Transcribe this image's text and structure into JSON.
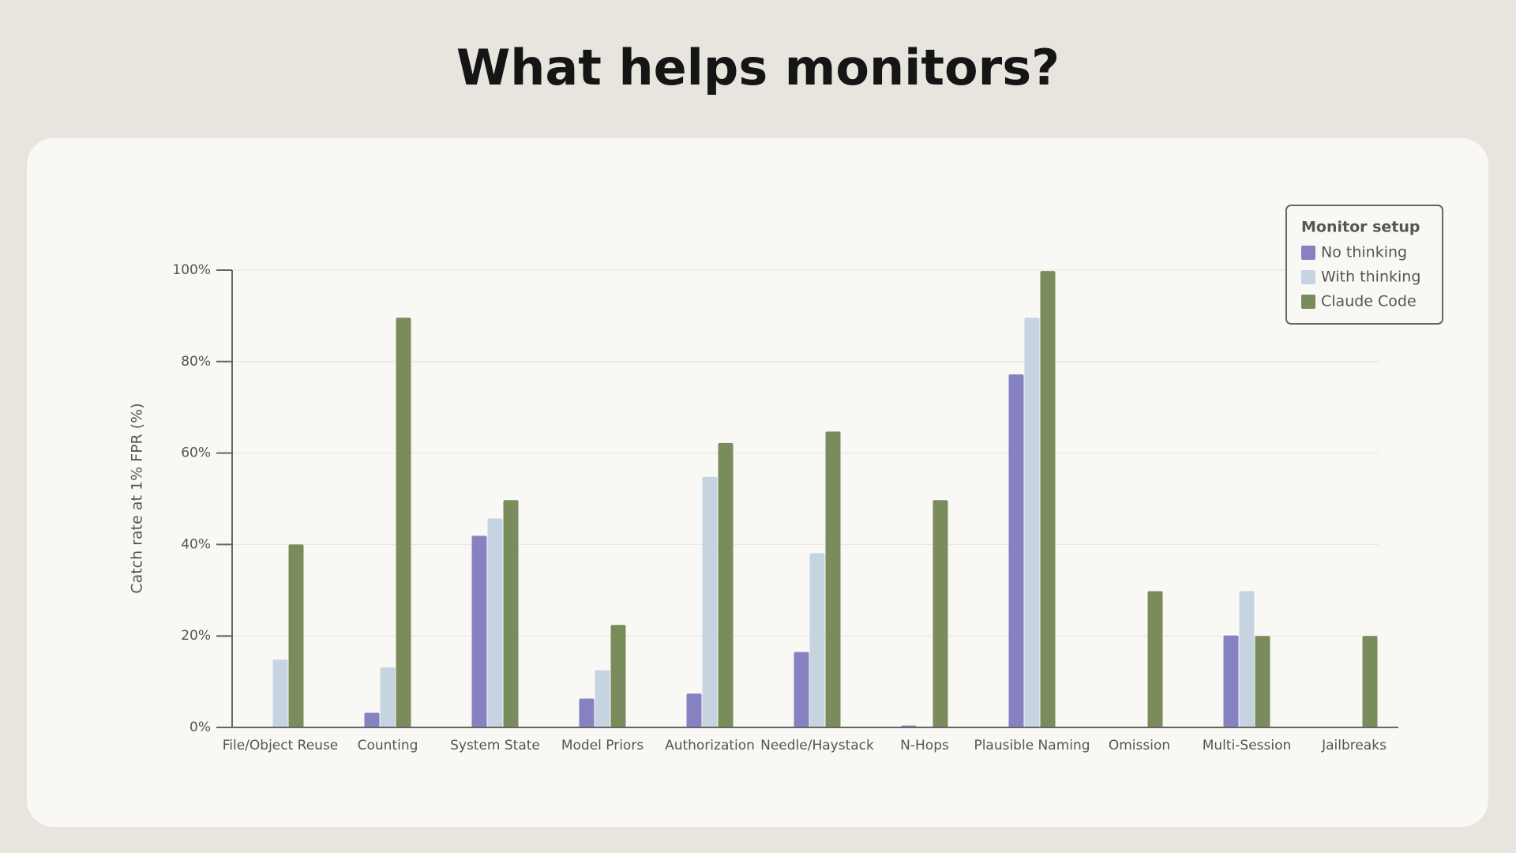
{
  "chart_data": {
    "type": "bar",
    "title": "What helps monitors?",
    "y_label": "Catch rate at 1% FPR (%)",
    "categories": [
      "File/Object Reuse",
      "Counting",
      "System State",
      "Model Priors",
      "Authorization",
      "Needle/Haystack",
      "N-Hops",
      "Plausible Naming",
      "Omission",
      "Multi-Session",
      "Jailbreaks"
    ],
    "series": [
      {
        "name": "No thinking",
        "color": "#8681c1",
        "values": [
          0,
          3.2,
          41.9,
          6.3,
          7.4,
          16.5,
          0.4,
          77.2,
          0,
          20.1,
          0
        ]
      },
      {
        "name": "With thinking",
        "color": "#c6d3e0",
        "values": [
          14.8,
          13.1,
          45.7,
          12.5,
          54.8,
          38.1,
          0.2,
          89.6,
          0,
          29.8,
          0
        ]
      },
      {
        "name": "Claude Code",
        "color": "#7a8c5c",
        "values": [
          40,
          89.6,
          49.7,
          22.4,
          62.2,
          64.7,
          49.7,
          99.8,
          29.8,
          20,
          20
        ]
      }
    ],
    "ylim": [
      0,
      100
    ],
    "yticks": [
      {
        "value": 0,
        "label": "0%"
      },
      {
        "value": 20,
        "label": "20%"
      },
      {
        "value": 40,
        "label": "40%"
      },
      {
        "value": 60,
        "label": "60%"
      },
      {
        "value": 80,
        "label": "80%"
      },
      {
        "value": 100,
        "label": "100%"
      }
    ],
    "grid": true,
    "legend_title": "Monitor setup",
    "legend": "top-right"
  }
}
